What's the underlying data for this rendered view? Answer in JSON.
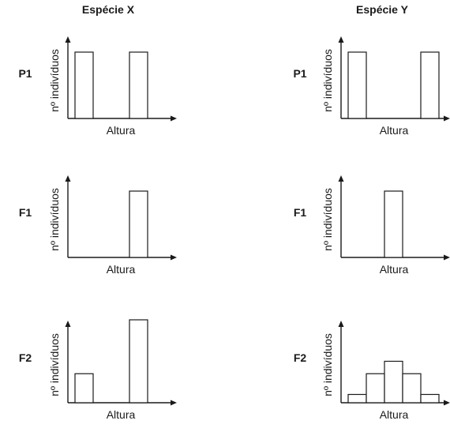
{
  "columns": [
    {
      "title": "Espécie X"
    },
    {
      "title": "Espécie Y"
    }
  ],
  "chart_data": [
    {
      "type": "bar",
      "species": "Espécie X",
      "generation": "P1",
      "xlabel": "Altura",
      "ylabel": "nº indivíduos",
      "bins": 6,
      "values": [
        0.8,
        0,
        0,
        0.8,
        0,
        0
      ]
    },
    {
      "type": "bar",
      "species": "Espécie Y",
      "generation": "P1",
      "xlabel": "Altura",
      "ylabel": "nº indivíduos",
      "bins": 6,
      "values": [
        0.8,
        0,
        0,
        0,
        0.8,
        0
      ]
    },
    {
      "type": "bar",
      "species": "Espécie X",
      "generation": "F1",
      "xlabel": "Altura",
      "ylabel": "nº indivíduos",
      "bins": 6,
      "values": [
        0,
        0,
        0,
        0.8,
        0,
        0
      ]
    },
    {
      "type": "bar",
      "species": "Espécie Y",
      "generation": "F1",
      "xlabel": "Altura",
      "ylabel": "nº indivíduos",
      "bins": 6,
      "values": [
        0,
        0,
        0.8,
        0,
        0,
        0
      ]
    },
    {
      "type": "bar",
      "species": "Espécie X",
      "generation": "F2",
      "xlabel": "Altura",
      "ylabel": "nº indivíduos",
      "bins": 6,
      "values": [
        0.35,
        0,
        0,
        1.0,
        0,
        0
      ]
    },
    {
      "type": "bar",
      "species": "Espécie Y",
      "generation": "F2",
      "xlabel": "Altura",
      "ylabel": "nº indivíduos",
      "bins": 6,
      "values": [
        0.1,
        0.35,
        0.5,
        0.35,
        0.1,
        0
      ]
    }
  ]
}
